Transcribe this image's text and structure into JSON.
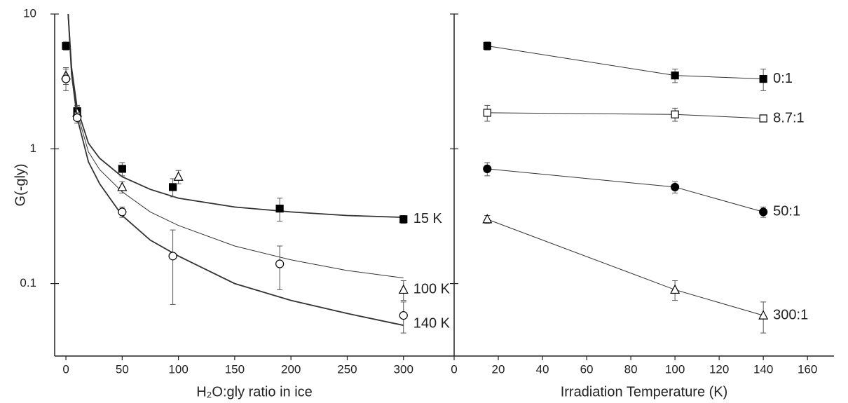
{
  "chart_data": [
    {
      "type": "scatter",
      "log_y": true,
      "xlabel": "H₂O:gly ratio in ice",
      "ylabel": "G(-gly)",
      "xlim": [
        -10,
        345
      ],
      "xticks": [
        0,
        50,
        100,
        150,
        200,
        250,
        300
      ],
      "ylim": [
        0.029,
        10
      ],
      "yticks": [
        0.1,
        1,
        10
      ],
      "series": [
        {
          "name": "15 K",
          "marker": "square",
          "filled": true,
          "color": "#000000",
          "x": [
            0,
            10,
            50,
            95,
            190,
            300
          ],
          "values": [
            5.8,
            1.9,
            0.71,
            0.52,
            0.36,
            0.3
          ],
          "err": [
            0.4,
            0.2,
            0.08,
            0.08,
            0.07,
            0.02
          ],
          "fit_x": [
            2,
            5,
            10,
            20,
            30,
            50,
            75,
            100,
            150,
            200,
            250,
            300
          ],
          "fit_values": [
            10,
            4,
            2,
            1.1,
            0.85,
            0.62,
            0.5,
            0.43,
            0.37,
            0.34,
            0.32,
            0.31
          ]
        },
        {
          "name": "100 K",
          "marker": "triangle",
          "filled": false,
          "color": "#000000",
          "x": [
            0,
            10,
            50,
            100,
            300
          ],
          "values": [
            3.5,
            1.85,
            0.52,
            0.62,
            0.09
          ],
          "err": [
            0.5,
            0.2,
            0.05,
            0.07,
            0.015
          ],
          "fit_x": [
            2,
            5,
            10,
            20,
            30,
            50,
            75,
            100,
            150,
            200,
            250,
            300
          ],
          "fit_values": [
            10,
            3.8,
            1.85,
            0.95,
            0.7,
            0.48,
            0.34,
            0.27,
            0.19,
            0.15,
            0.125,
            0.11
          ]
        },
        {
          "name": "140 K",
          "marker": "circle",
          "filled": false,
          "color": "#000000",
          "x": [
            0,
            10,
            50,
            95,
            190,
            300
          ],
          "values": [
            3.3,
            1.7,
            0.34,
            0.16,
            0.14,
            0.058
          ],
          "err": [
            0.6,
            0.15,
            0.03,
            0.09,
            0.05,
            0.015
          ],
          "fit_x": [
            2,
            5,
            10,
            20,
            30,
            50,
            75,
            100,
            150,
            200,
            250,
            300
          ],
          "fit_values": [
            10,
            3.6,
            1.7,
            0.8,
            0.55,
            0.32,
            0.21,
            0.16,
            0.1,
            0.075,
            0.06,
            0.049
          ]
        }
      ]
    },
    {
      "type": "line",
      "log_y": true,
      "xlabel": "Irradiation Temperature (K)",
      "xlim": [
        0,
        172
      ],
      "xticks": [
        0,
        20,
        40,
        60,
        80,
        100,
        120,
        140,
        160
      ],
      "ylim": [
        0.029,
        10
      ],
      "yticks": [
        0.1,
        1,
        10
      ],
      "series": [
        {
          "name": "0:1",
          "marker": "square",
          "filled": true,
          "color": "#000000",
          "x": [
            15,
            100,
            140
          ],
          "values": [
            5.8,
            3.5,
            3.3
          ],
          "err": [
            0.4,
            0.4,
            0.6
          ]
        },
        {
          "name": "8.7:1",
          "marker": "square",
          "filled": false,
          "color": "#000000",
          "x": [
            15,
            100,
            140
          ],
          "values": [
            1.85,
            1.8,
            1.68
          ],
          "err": [
            0.25,
            0.2,
            0.05
          ]
        },
        {
          "name": "50:1",
          "marker": "circle",
          "filled": true,
          "color": "#000000",
          "x": [
            15,
            100,
            140
          ],
          "values": [
            0.71,
            0.52,
            0.34
          ],
          "err": [
            0.08,
            0.05,
            0.03
          ]
        },
        {
          "name": "300:1",
          "marker": "triangle",
          "filled": false,
          "color": "#000000",
          "x": [
            15,
            100,
            140
          ],
          "values": [
            0.3,
            0.09,
            0.058
          ],
          "err": [
            0.02,
            0.015,
            0.015
          ]
        }
      ]
    }
  ]
}
